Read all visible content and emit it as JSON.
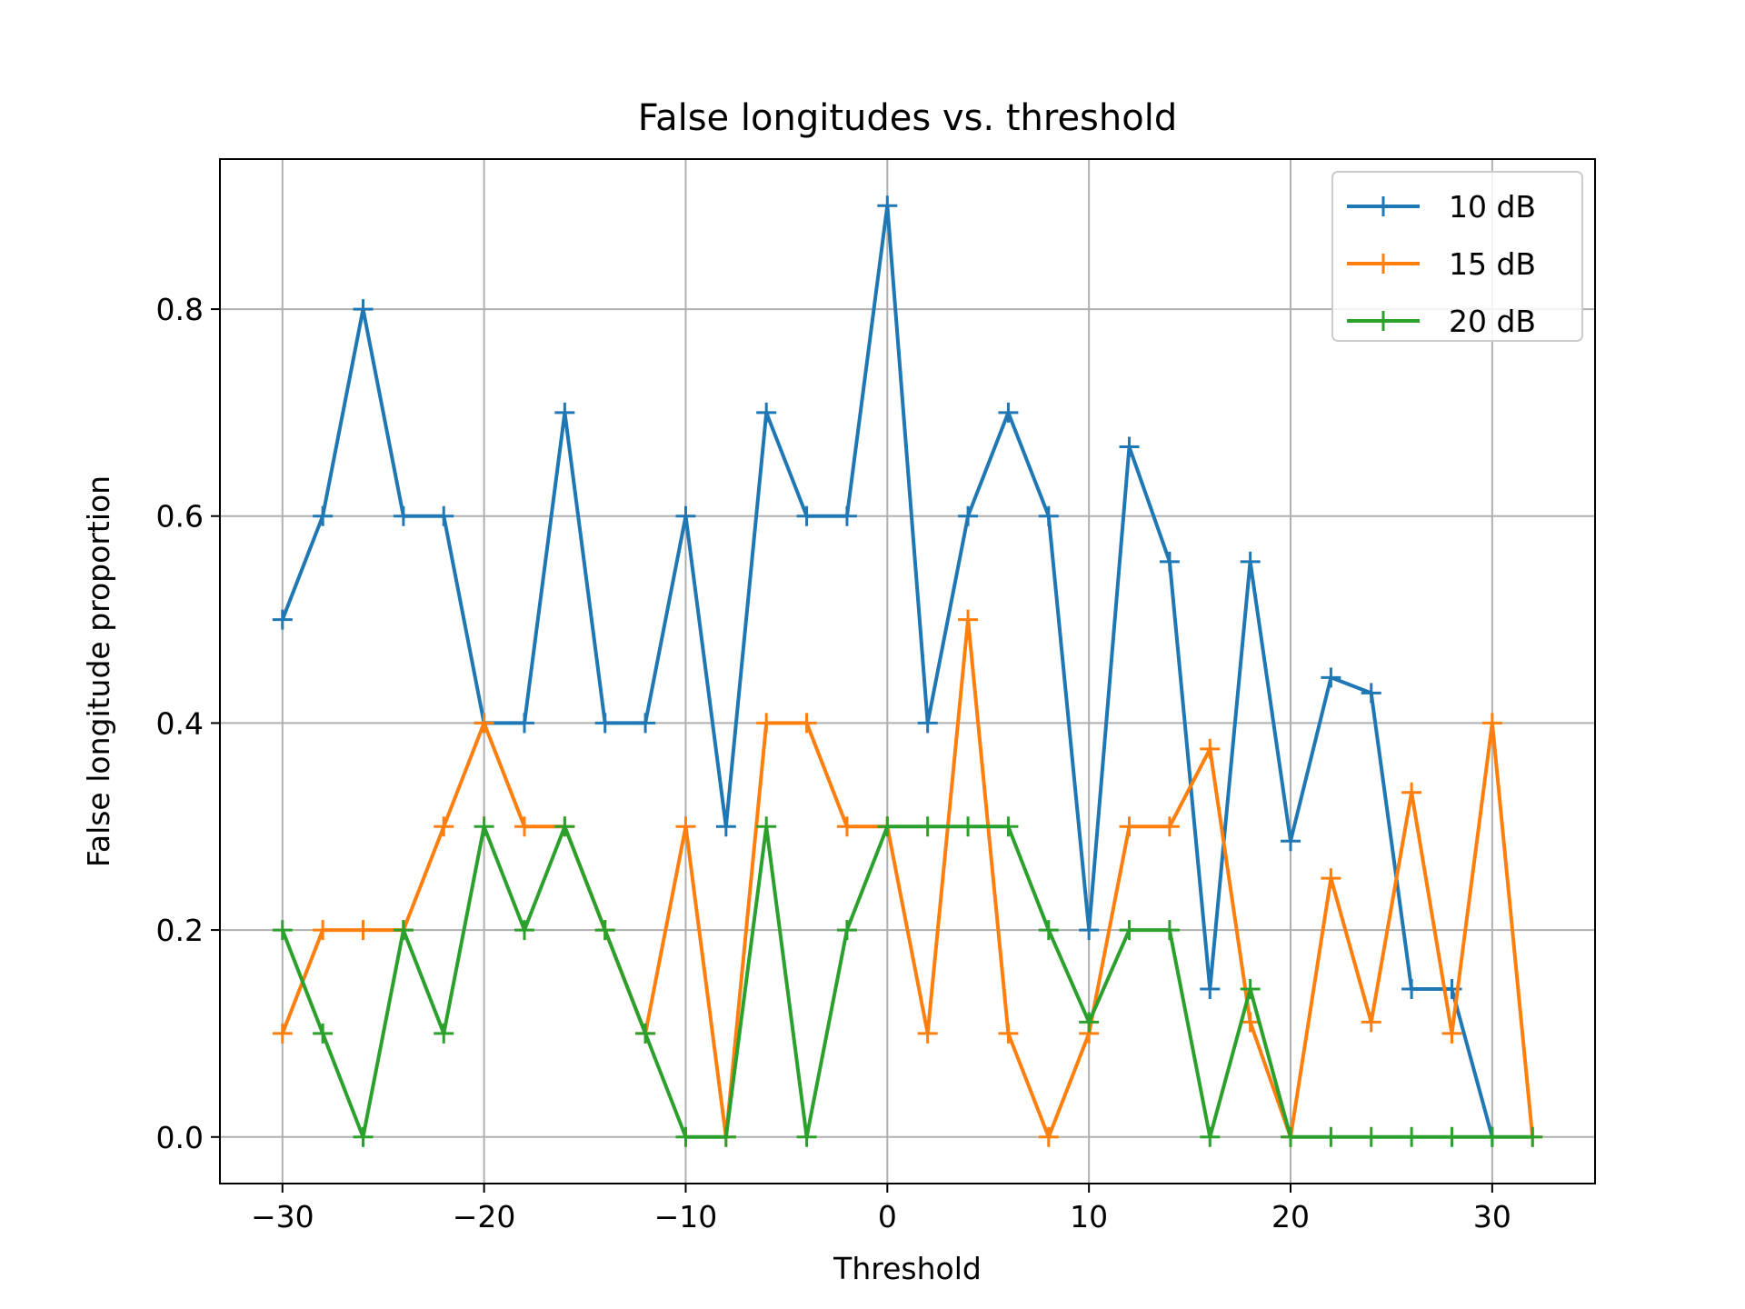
{
  "chart_data": {
    "type": "line",
    "title": "False longitudes vs. threshold",
    "xlabel": "Threshold",
    "ylabel": "False longitude proportion",
    "xlim": [
      -33.1,
      35.1
    ],
    "ylim": [
      -0.045,
      0.945
    ],
    "xticks": [
      -30,
      -20,
      -10,
      0,
      10,
      20,
      30
    ],
    "xtick_labels": [
      "−30",
      "−20",
      "−10",
      "0",
      "10",
      "20",
      "30"
    ],
    "yticks": [
      0.0,
      0.2,
      0.4,
      0.6,
      0.8
    ],
    "ytick_labels": [
      "0.0",
      "0.2",
      "0.4",
      "0.6",
      "0.8"
    ],
    "grid": true,
    "legend_position": "top-right",
    "marker": "+",
    "series": [
      {
        "name": "10 dB",
        "color": "#1f77b4",
        "x": [
          -30,
          -28,
          -26,
          -24,
          -22,
          -20,
          -18,
          -16,
          -14,
          -12,
          -10,
          -8,
          -6,
          -4,
          -2,
          0,
          2,
          4,
          6,
          8,
          10,
          12,
          14,
          16,
          18,
          20,
          22,
          24,
          26,
          28,
          30
        ],
        "y": [
          0.5,
          0.6,
          0.8,
          0.6,
          0.6,
          0.4,
          0.4,
          0.7,
          0.4,
          0.4,
          0.6,
          0.3,
          0.7,
          0.6,
          0.6,
          0.9,
          0.4,
          0.6,
          0.7,
          0.6,
          0.2,
          0.667,
          0.556,
          0.143,
          0.556,
          0.286,
          0.444,
          0.429,
          0.143,
          0.143,
          0.0
        ]
      },
      {
        "name": "15 dB",
        "color": "#ff7f0e",
        "x": [
          -30,
          -28,
          -26,
          -24,
          -22,
          -20,
          -18,
          -16,
          -14,
          -12,
          -10,
          -8,
          -6,
          -4,
          -2,
          0,
          2,
          4,
          6,
          8,
          10,
          12,
          14,
          16,
          18,
          20,
          22,
          24,
          26,
          28,
          30,
          32
        ],
        "y": [
          0.1,
          0.2,
          0.2,
          0.2,
          0.3,
          0.4,
          0.3,
          0.3,
          0.2,
          0.1,
          0.3,
          0.0,
          0.4,
          0.4,
          0.3,
          0.3,
          0.1,
          0.5,
          0.1,
          0.0,
          0.1,
          0.3,
          0.3,
          0.375,
          0.111,
          0.0,
          0.25,
          0.111,
          0.333,
          0.1,
          0.4,
          0.0
        ]
      },
      {
        "name": "20 dB",
        "color": "#2ca02c",
        "x": [
          -30,
          -28,
          -26,
          -24,
          -22,
          -20,
          -18,
          -16,
          -14,
          -12,
          -10,
          -8,
          -6,
          -4,
          -2,
          0,
          2,
          4,
          6,
          8,
          10,
          12,
          14,
          16,
          18,
          20,
          22,
          24,
          26,
          28,
          30,
          32
        ],
        "y": [
          0.2,
          0.1,
          0.0,
          0.2,
          0.1,
          0.3,
          0.2,
          0.3,
          0.2,
          0.1,
          0.0,
          0.0,
          0.3,
          0.0,
          0.2,
          0.3,
          0.3,
          0.3,
          0.3,
          0.2,
          0.111,
          0.2,
          0.2,
          0.0,
          0.143,
          0.0,
          0.0,
          0.0,
          0.0,
          0.0,
          0.0,
          0.0
        ]
      }
    ]
  }
}
